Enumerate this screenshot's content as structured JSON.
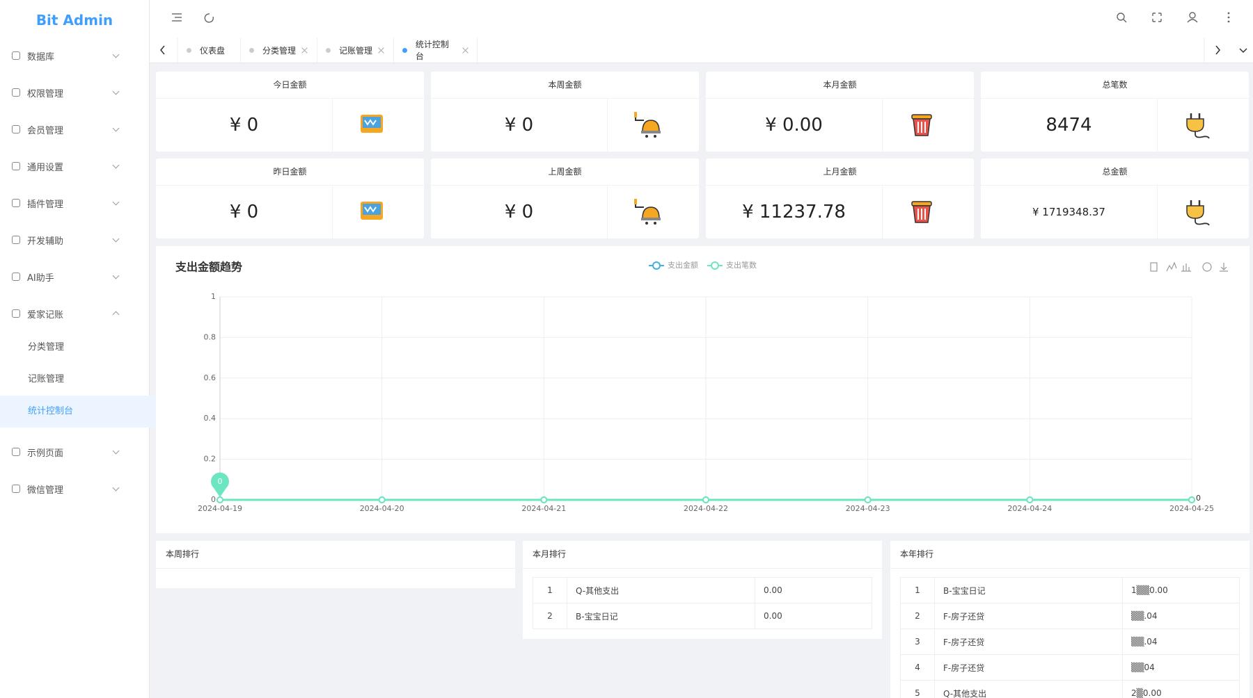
{
  "brand": "Bit Admin",
  "menu": [
    {
      "label": "数据库"
    },
    {
      "label": "权限管理"
    },
    {
      "label": "会员管理"
    },
    {
      "label": "通用设置"
    },
    {
      "label": "插件管理"
    },
    {
      "label": "开发辅助"
    },
    {
      "label": "AI助手"
    },
    {
      "label": "爱家记账",
      "open": true,
      "children": [
        "分类管理",
        "记账管理",
        "统计控制台"
      ],
      "active": 2
    },
    {
      "label": "示例页面"
    },
    {
      "label": "微信管理"
    }
  ],
  "tabs": {
    "items": [
      "仪表盘",
      "分类管理",
      "记账管理",
      "统计控制台"
    ],
    "active": 3
  },
  "cards": [
    {
      "title": "今日金额",
      "value": "¥ 0"
    },
    {
      "title": "本周金额",
      "value": "¥ 0"
    },
    {
      "title": "本月金额",
      "value": "¥ 0.00"
    },
    {
      "title": "总笔数",
      "value": "8474"
    },
    {
      "title": "昨日金额",
      "value": "¥ 0"
    },
    {
      "title": "上周金额",
      "value": "¥ 0"
    },
    {
      "title": "上月金额",
      "value": "¥ 11237.78"
    },
    {
      "title": "总金额",
      "value": "¥ 1719348.37"
    }
  ],
  "chart": {
    "type": "line",
    "title": "支出金额趋势",
    "x": [
      "2024-04-19",
      "2024-04-20",
      "2024-04-21",
      "2024-04-22",
      "2024-04-23",
      "2024-04-24",
      "2024-04-25"
    ],
    "series": [
      {
        "name": "支出金额",
        "color": "#3fb1e3",
        "values": [
          0,
          0,
          0,
          0,
          0,
          0,
          0
        ]
      },
      {
        "name": "支出笔数",
        "color": "#6be6c1",
        "values": [
          0,
          0,
          0,
          0,
          0,
          0,
          0
        ]
      }
    ],
    "ylim": [
      0,
      1
    ],
    "yticks": [
      0,
      0.2,
      0.4,
      0.6,
      0.8,
      1
    ],
    "grid": true
  },
  "rankings": [
    {
      "title": "本周排行",
      "rows": []
    },
    {
      "title": "本月排行",
      "rows": [
        [
          "1",
          "Q-其他支出",
          "0.00"
        ],
        [
          "2",
          "B-宝宝日记",
          "0.00"
        ]
      ]
    },
    {
      "title": "本年排行",
      "rows": [
        [
          "1",
          "B-宝宝日记",
          "1▒▒0.00"
        ],
        [
          "2",
          "F-房子还贷",
          "▒▒.04"
        ],
        [
          "3",
          "F-房子还贷",
          "▒▒.04"
        ],
        [
          "4",
          "F-房子还贷",
          "▒▒04"
        ],
        [
          "5",
          "Q-其他支出",
          "2▒0.00"
        ]
      ]
    }
  ]
}
